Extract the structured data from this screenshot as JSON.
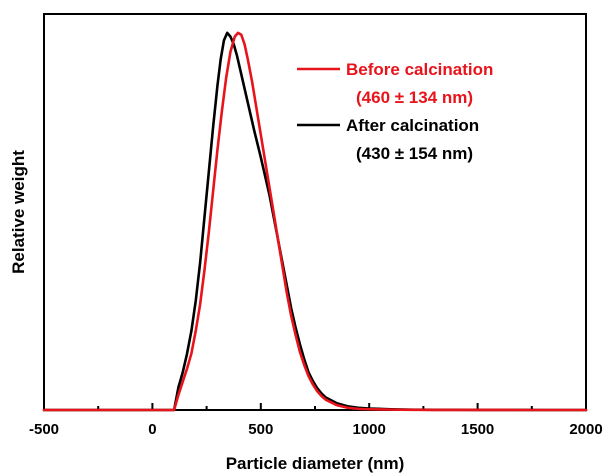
{
  "chart_data": {
    "type": "line",
    "title": "",
    "xlabel": "Particle diameter (nm)",
    "ylabel": "Relative weight",
    "xlim": [
      -500,
      2000
    ],
    "ylim": [
      0,
      1.05
    ],
    "xticks": [
      -500,
      0,
      500,
      1000,
      1500,
      2000
    ],
    "xtick_labels": [
      "-500",
      "0",
      "500",
      "1000",
      "1500",
      "2000"
    ],
    "grid": false,
    "legend_position": "top-right",
    "series": [
      {
        "name": "Before calcination",
        "annotation": "(460 ± 134 nm)",
        "color": "#e8141b",
        "x": [
          -500,
          100,
          110,
          120,
          140,
          160,
          180,
          200,
          220,
          240,
          260,
          280,
          300,
          320,
          340,
          360,
          380,
          395,
          410,
          425,
          440,
          460,
          480,
          500,
          520,
          540,
          560,
          580,
          600,
          620,
          640,
          660,
          680,
          700,
          720,
          740,
          760,
          780,
          800,
          850,
          900,
          950,
          1000,
          1100,
          1200,
          1300,
          1400,
          1500,
          1600,
          1700,
          1800,
          2000
        ],
        "y": [
          0,
          0,
          0.02,
          0.04,
          0.075,
          0.11,
          0.15,
          0.21,
          0.28,
          0.37,
          0.47,
          0.58,
          0.69,
          0.79,
          0.88,
          0.95,
          0.99,
          1.0,
          0.995,
          0.97,
          0.93,
          0.87,
          0.8,
          0.73,
          0.66,
          0.59,
          0.52,
          0.45,
          0.38,
          0.31,
          0.25,
          0.2,
          0.155,
          0.12,
          0.09,
          0.068,
          0.05,
          0.037,
          0.027,
          0.013,
          0.006,
          0.003,
          0.002,
          0.001,
          0.0005,
          0.0003,
          0.0002,
          0.0001,
          0.0001,
          0,
          0,
          0
        ]
      },
      {
        "name": "After calcination",
        "annotation": "(430 ± 154 nm)",
        "color": "#000000",
        "x": [
          -500,
          100,
          110,
          120,
          140,
          160,
          180,
          200,
          220,
          240,
          260,
          280,
          300,
          315,
          330,
          345,
          360,
          375,
          390,
          410,
          430,
          450,
          470,
          500,
          520,
          540,
          560,
          580,
          600,
          620,
          640,
          660,
          680,
          700,
          720,
          740,
          760,
          780,
          800,
          850,
          900,
          950,
          1000,
          1100,
          1200,
          1300,
          1400,
          1500,
          1600,
          1700,
          1800,
          2000
        ],
        "y": [
          0,
          0,
          0.03,
          0.06,
          0.1,
          0.15,
          0.21,
          0.29,
          0.39,
          0.51,
          0.63,
          0.75,
          0.86,
          0.93,
          0.98,
          1.0,
          0.99,
          0.97,
          0.94,
          0.89,
          0.84,
          0.79,
          0.74,
          0.67,
          0.62,
          0.57,
          0.51,
          0.45,
          0.39,
          0.33,
          0.27,
          0.22,
          0.175,
          0.135,
          0.1,
          0.077,
          0.058,
          0.044,
          0.033,
          0.018,
          0.01,
          0.006,
          0.004,
          0.002,
          0.001,
          0.0006,
          0.0004,
          0.0003,
          0.0002,
          0.0001,
          0,
          0
        ]
      }
    ]
  }
}
